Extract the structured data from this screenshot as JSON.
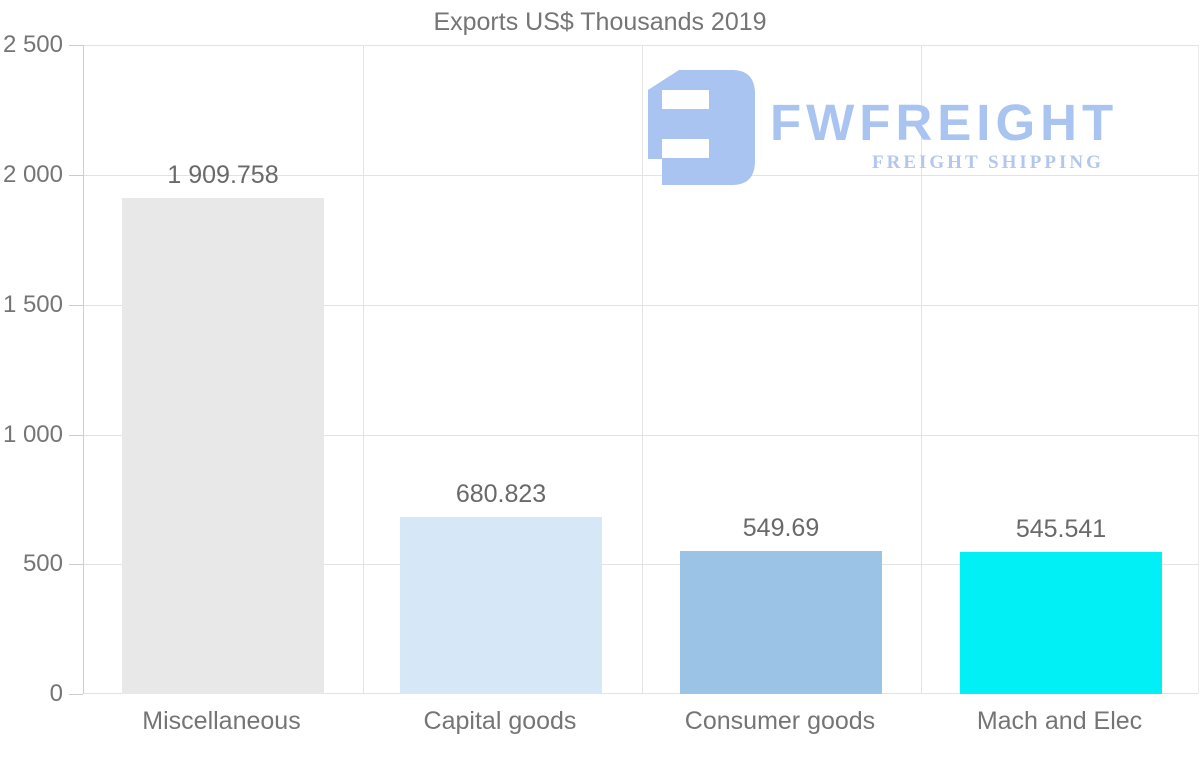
{
  "title": "Exports US$ Thousands 2019",
  "watermark": {
    "brand": "FWFREIGHT",
    "tagline": "FREIGHT SHIPPING",
    "mark_color": "#a9c4f0",
    "brand_color": "#a9c4f0",
    "tagline_color": "#b2c6ee"
  },
  "y_axis": {
    "tick_labels": [
      "2 500",
      "2 000",
      "1 500",
      "1 000",
      "500",
      "0"
    ]
  },
  "colors": {
    "background": "#ffffff",
    "text": "#757575",
    "value_label": "#696969",
    "gridline": "#e3e3e3",
    "axis_line": "#cfcfcf",
    "tick_mark": "#cccccc"
  },
  "chart_data": {
    "type": "bar",
    "title": "Exports US$ Thousands 2019",
    "categories": [
      "Miscellaneous",
      "Capital goods",
      "Consumer goods",
      "Mach and Elec"
    ],
    "values": [
      1909.758,
      680.823,
      549.69,
      545.541
    ],
    "value_labels": [
      "1 909.758",
      "680.823",
      "549.69",
      "545.541"
    ],
    "bar_colors": [
      "#e8e8e8",
      "#d6e8f8",
      "#9ac3e6",
      "#00f0f5"
    ],
    "xlabel": "",
    "ylabel": "",
    "ylim": [
      0,
      2500
    ],
    "ytick_interval": 500,
    "ytick_labels": [
      "2 500",
      "2 000",
      "1 500",
      "1 000",
      "500",
      "0"
    ],
    "grid": true,
    "legend": false
  }
}
